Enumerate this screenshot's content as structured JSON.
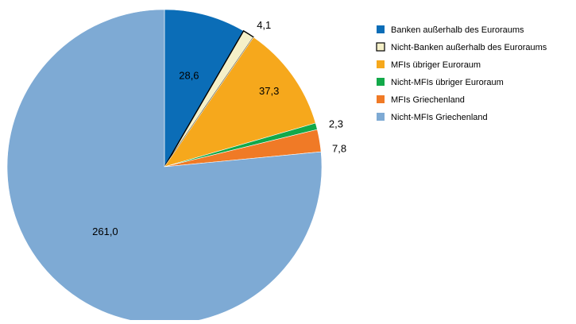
{
  "chart_data": {
    "type": "pie",
    "title": "",
    "start_angle_deg": 0,
    "direction": "clockwise",
    "legend_position": "right",
    "slices": [
      {
        "label": "Banken außerhalb des Euroraums",
        "value": 28.6,
        "value_label": "28,6",
        "color": "#0b6db7"
      },
      {
        "label": "Nicht-Banken außerhalb des Euroraums",
        "value": 4.1,
        "value_label": "4,1",
        "color": "#f5f0c8",
        "stroke": "#000000"
      },
      {
        "label": "MFIs übriger Euroraum",
        "value": 37.3,
        "value_label": "37,3",
        "color": "#f6a81c"
      },
      {
        "label": "Nicht-MFIs übriger Euroraum",
        "value": 2.3,
        "value_label": "2,3",
        "color": "#12a94a"
      },
      {
        "label": "MFIs Griechenland",
        "value": 7.8,
        "value_label": "7,8",
        "color": "#f07a26"
      },
      {
        "label": "Nicht-MFIs Griechenland",
        "value": 261.0,
        "value_label": "261,0",
        "color": "#7eaad4"
      }
    ]
  }
}
